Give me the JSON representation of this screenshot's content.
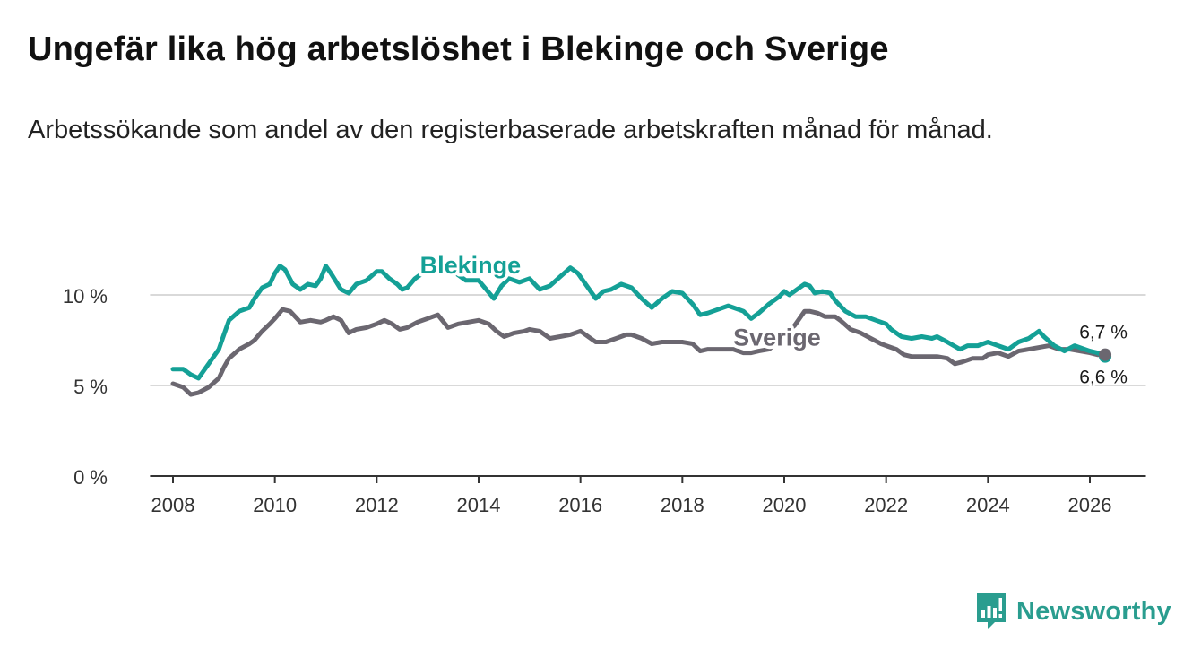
{
  "title": "Ungefär lika hög arbetslöshet i Blekinge och Sverige",
  "subtitle": "Arbetssökande som andel av den registerbaserade arbetskraften månad för månad.",
  "brand": {
    "name": "Newsworthy",
    "color": "#2a9d8f",
    "icon": "bar-chart-speech-bubble-icon"
  },
  "chart_data": {
    "type": "line",
    "title": "Ungefär lika hög arbetslöshet i Blekinge och Sverige",
    "xlabel": "",
    "ylabel": "",
    "xlim": [
      2007.55,
      2027.1
    ],
    "ylim": [
      0,
      12
    ],
    "x_ticks": [
      2008,
      2010,
      2012,
      2014,
      2016,
      2018,
      2020,
      2022,
      2024,
      2026
    ],
    "y_ticks": [
      0,
      5,
      10
    ],
    "y_tick_labels": [
      "0 %",
      "5 %",
      "10 %"
    ],
    "grid": "horizontal",
    "series": [
      {
        "name": "Blekinge",
        "label": "Blekinge",
        "color": "#14a096",
        "end_label": "6,6 %",
        "x": [
          2008.0,
          2008.2,
          2008.35,
          2008.5,
          2008.7,
          2008.9,
          2009.0,
          2009.1,
          2009.3,
          2009.5,
          2009.6,
          2009.75,
          2009.9,
          2010.0,
          2010.1,
          2010.2,
          2010.35,
          2010.5,
          2010.65,
          2010.8,
          2010.9,
          2011.0,
          2011.1,
          2011.3,
          2011.45,
          2011.6,
          2011.8,
          2012.0,
          2012.1,
          2012.25,
          2012.4,
          2012.5,
          2012.6,
          2012.75,
          2012.9,
          2013.0,
          2013.2,
          2013.5,
          2013.75,
          2014.0,
          2014.15,
          2014.3,
          2014.45,
          2014.6,
          2014.8,
          2015.0,
          2015.2,
          2015.4,
          2015.6,
          2015.8,
          2015.95,
          2016.1,
          2016.3,
          2016.45,
          2016.6,
          2016.8,
          2016.9,
          2017.0,
          2017.2,
          2017.4,
          2017.6,
          2017.8,
          2018.0,
          2018.2,
          2018.35,
          2018.5,
          2018.7,
          2018.9,
          2019.0,
          2019.2,
          2019.35,
          2019.5,
          2019.7,
          2019.9,
          2020.0,
          2020.1,
          2020.25,
          2020.4,
          2020.5,
          2020.6,
          2020.75,
          2020.9,
          2021.0,
          2021.2,
          2021.4,
          2021.6,
          2021.8,
          2022.0,
          2022.1,
          2022.3,
          2022.5,
          2022.7,
          2022.9,
          2023.0,
          2023.2,
          2023.45,
          2023.6,
          2023.8,
          2024.0,
          2024.2,
          2024.4,
          2024.6,
          2024.8,
          2025.0,
          2025.1,
          2025.3,
          2025.5,
          2025.7,
          2025.9,
          2026.0,
          2026.15,
          2026.3
        ],
        "values": [
          5.9,
          5.9,
          5.6,
          5.4,
          6.2,
          7.0,
          7.8,
          8.6,
          9.1,
          9.3,
          9.8,
          10.4,
          10.6,
          11.2,
          11.6,
          11.4,
          10.6,
          10.3,
          10.6,
          10.5,
          10.9,
          11.6,
          11.2,
          10.3,
          10.1,
          10.6,
          10.8,
          11.3,
          11.3,
          10.9,
          10.6,
          10.3,
          10.4,
          10.9,
          11.2,
          11.5,
          11.9,
          11.3,
          10.8,
          10.8,
          10.3,
          9.8,
          10.5,
          10.9,
          10.7,
          10.9,
          10.3,
          10.5,
          11.0,
          11.5,
          11.2,
          10.6,
          9.8,
          10.2,
          10.3,
          10.6,
          10.5,
          10.4,
          9.8,
          9.3,
          9.8,
          10.2,
          10.1,
          9.5,
          8.9,
          9.0,
          9.2,
          9.4,
          9.3,
          9.1,
          8.7,
          9.0,
          9.5,
          9.9,
          10.2,
          10.0,
          10.3,
          10.6,
          10.5,
          10.1,
          10.2,
          10.1,
          9.7,
          9.1,
          8.8,
          8.8,
          8.6,
          8.4,
          8.1,
          7.7,
          7.6,
          7.7,
          7.6,
          7.7,
          7.4,
          7.0,
          7.2,
          7.2,
          7.4,
          7.2,
          7.0,
          7.4,
          7.6,
          8.0,
          7.7,
          7.2,
          6.9,
          7.2,
          7.0,
          6.9,
          6.8,
          6.6
        ]
      },
      {
        "name": "Sverige",
        "label": "Sverige",
        "color": "#6b6770",
        "end_label": "6,7 %",
        "x": [
          2008.0,
          2008.2,
          2008.35,
          2008.5,
          2008.7,
          2008.9,
          2009.0,
          2009.1,
          2009.3,
          2009.5,
          2009.6,
          2009.75,
          2009.9,
          2010.0,
          2010.15,
          2010.3,
          2010.5,
          2010.7,
          2010.9,
          2011.0,
          2011.15,
          2011.3,
          2011.45,
          2011.6,
          2011.8,
          2012.0,
          2012.15,
          2012.3,
          2012.45,
          2012.6,
          2012.8,
          2013.0,
          2013.2,
          2013.4,
          2013.6,
          2013.8,
          2014.0,
          2014.2,
          2014.35,
          2014.5,
          2014.7,
          2014.9,
          2015.0,
          2015.2,
          2015.4,
          2015.6,
          2015.8,
          2016.0,
          2016.15,
          2016.3,
          2016.5,
          2016.7,
          2016.9,
          2017.0,
          2017.2,
          2017.4,
          2017.6,
          2017.8,
          2018.0,
          2018.2,
          2018.35,
          2018.5,
          2018.7,
          2018.9,
          2019.0,
          2019.2,
          2019.35,
          2019.5,
          2019.7,
          2019.9,
          2020.0,
          2020.2,
          2020.4,
          2020.5,
          2020.65,
          2020.8,
          2020.9,
          2021.0,
          2021.1,
          2021.3,
          2021.5,
          2021.7,
          2021.9,
          2022.0,
          2022.2,
          2022.35,
          2022.5,
          2022.7,
          2022.9,
          2023.0,
          2023.2,
          2023.35,
          2023.5,
          2023.7,
          2023.9,
          2024.0,
          2024.2,
          2024.4,
          2024.6,
          2024.8,
          2025.0,
          2025.2,
          2025.4,
          2025.6,
          2025.8,
          2026.0,
          2026.15,
          2026.3
        ],
        "values": [
          5.1,
          4.9,
          4.5,
          4.6,
          4.9,
          5.4,
          6.0,
          6.5,
          7.0,
          7.3,
          7.5,
          8.0,
          8.4,
          8.7,
          9.2,
          9.1,
          8.5,
          8.6,
          8.5,
          8.6,
          8.8,
          8.6,
          7.9,
          8.1,
          8.2,
          8.4,
          8.6,
          8.4,
          8.1,
          8.2,
          8.5,
          8.7,
          8.9,
          8.2,
          8.4,
          8.5,
          8.6,
          8.4,
          8.0,
          7.7,
          7.9,
          8.0,
          8.1,
          8.0,
          7.6,
          7.7,
          7.8,
          8.0,
          7.7,
          7.4,
          7.4,
          7.6,
          7.8,
          7.8,
          7.6,
          7.3,
          7.4,
          7.4,
          7.4,
          7.3,
          6.9,
          7.0,
          7.0,
          7.0,
          7.0,
          6.8,
          6.8,
          6.9,
          7.0,
          7.5,
          7.9,
          8.3,
          9.1,
          9.1,
          9.0,
          8.8,
          8.8,
          8.8,
          8.6,
          8.1,
          7.9,
          7.6,
          7.3,
          7.2,
          7.0,
          6.7,
          6.6,
          6.6,
          6.6,
          6.6,
          6.5,
          6.2,
          6.3,
          6.5,
          6.5,
          6.7,
          6.8,
          6.6,
          6.9,
          7.0,
          7.1,
          7.2,
          7.0,
          7.0,
          6.9,
          6.8,
          6.7,
          6.7
        ]
      }
    ]
  }
}
